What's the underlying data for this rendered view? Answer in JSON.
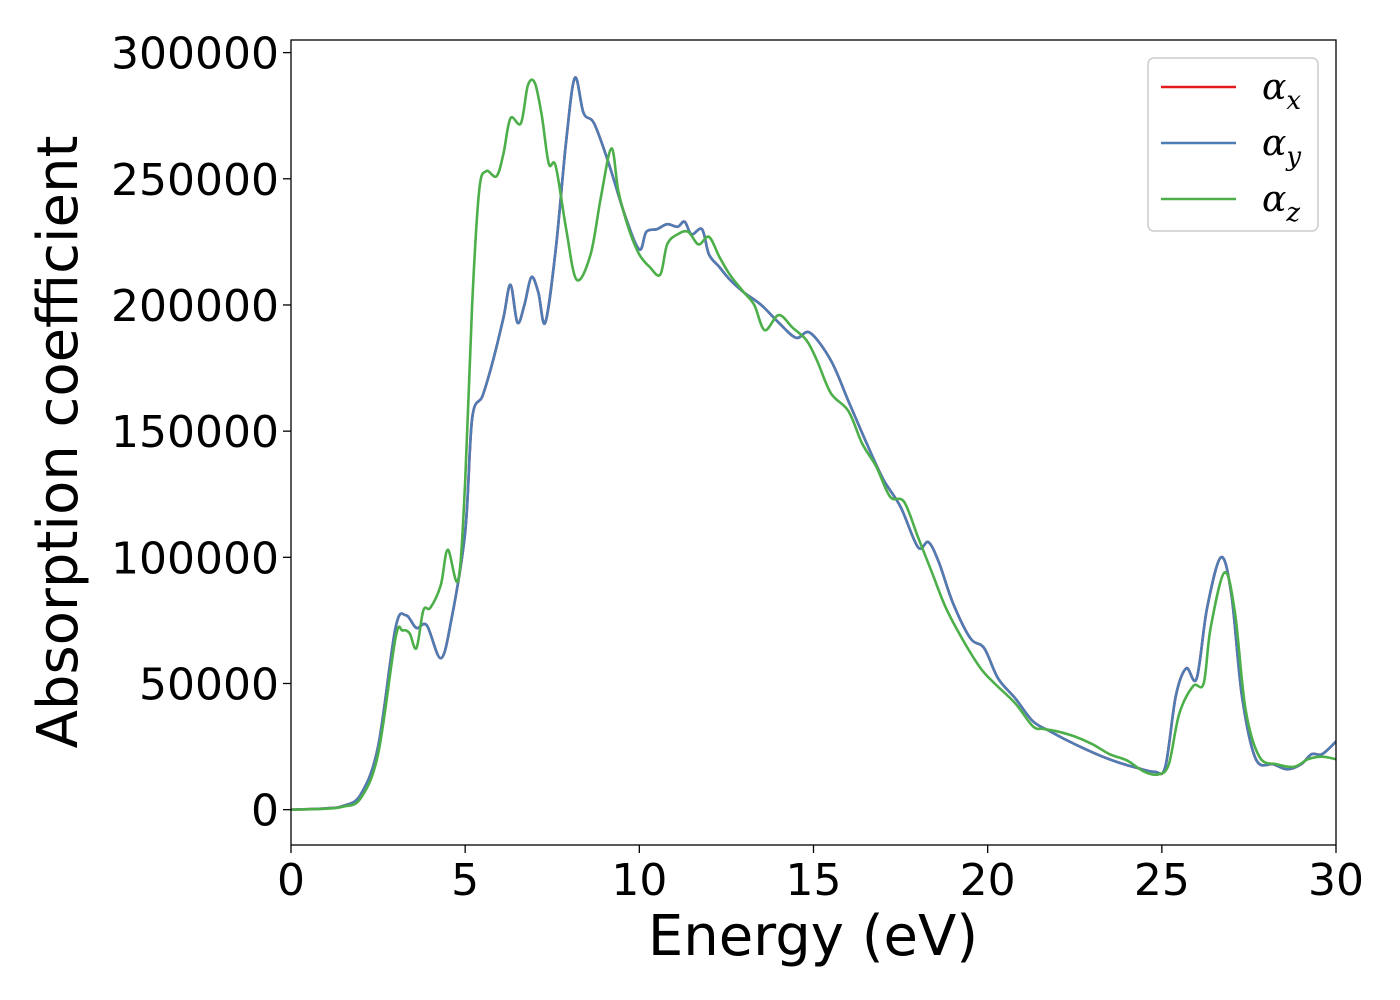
{
  "chart_data": {
    "type": "line",
    "xlabel": "Energy (eV)",
    "ylabel": "Absorption coefficient",
    "xlim": [
      0,
      30
    ],
    "ylim": [
      -14000,
      305000
    ],
    "xticks": [
      0,
      5,
      10,
      15,
      20,
      25,
      30
    ],
    "yticks": [
      0,
      50000,
      100000,
      150000,
      200000,
      250000,
      300000
    ],
    "grid": false,
    "legend_position": "top-right",
    "series": [
      {
        "name": "α_x",
        "legend_base": "α",
        "legend_sub": "x",
        "color": "#e41a1c",
        "points": [
          [
            0,
            0
          ],
          [
            1,
            500
          ],
          [
            1.5,
            1500
          ],
          [
            2,
            6000
          ],
          [
            2.5,
            25000
          ],
          [
            3,
            72000
          ],
          [
            3.3,
            77000
          ],
          [
            3.6,
            72000
          ],
          [
            3.9,
            73000
          ],
          [
            4.3,
            60000
          ],
          [
            4.6,
            75000
          ],
          [
            5,
            110000
          ],
          [
            5.2,
            155000
          ],
          [
            5.5,
            164000
          ],
          [
            5.8,
            178000
          ],
          [
            6.1,
            195000
          ],
          [
            6.3,
            208000
          ],
          [
            6.5,
            193000
          ],
          [
            6.7,
            200000
          ],
          [
            6.9,
            211000
          ],
          [
            7.1,
            205000
          ],
          [
            7.3,
            193000
          ],
          [
            7.6,
            222000
          ],
          [
            7.9,
            265000
          ],
          [
            8.15,
            290000
          ],
          [
            8.4,
            276000
          ],
          [
            8.7,
            272000
          ],
          [
            9.1,
            257000
          ],
          [
            9.6,
            235000
          ],
          [
            10,
            222000
          ],
          [
            10.2,
            229000
          ],
          [
            10.5,
            230000
          ],
          [
            10.8,
            232000
          ],
          [
            11.1,
            231000
          ],
          [
            11.3,
            233000
          ],
          [
            11.5,
            228000
          ],
          [
            11.8,
            230000
          ],
          [
            12,
            220000
          ],
          [
            12.3,
            215000
          ],
          [
            12.6,
            210000
          ],
          [
            13,
            205000
          ],
          [
            13.5,
            200000
          ],
          [
            14,
            193000
          ],
          [
            14.5,
            187000
          ],
          [
            14.9,
            189000
          ],
          [
            15.5,
            178000
          ],
          [
            16,
            162000
          ],
          [
            16.5,
            146000
          ],
          [
            17,
            131000
          ],
          [
            17.5,
            120000
          ],
          [
            18,
            104000
          ],
          [
            18.3,
            106000
          ],
          [
            18.6,
            98000
          ],
          [
            19,
            82000
          ],
          [
            19.5,
            68000
          ],
          [
            19.9,
            64000
          ],
          [
            20.3,
            52000
          ],
          [
            20.8,
            44000
          ],
          [
            21.3,
            35000
          ],
          [
            21.8,
            31000
          ],
          [
            22.2,
            28000
          ],
          [
            22.8,
            24000
          ],
          [
            23.3,
            21000
          ],
          [
            23.8,
            18500
          ],
          [
            24.3,
            16500
          ],
          [
            24.8,
            15000
          ],
          [
            25.1,
            17000
          ],
          [
            25.4,
            45000
          ],
          [
            25.7,
            56000
          ],
          [
            26,
            52000
          ],
          [
            26.3,
            80000
          ],
          [
            26.7,
            100000
          ],
          [
            27,
            85000
          ],
          [
            27.3,
            45000
          ],
          [
            27.7,
            20000
          ],
          [
            28.2,
            18000
          ],
          [
            28.6,
            16000
          ],
          [
            29,
            18000
          ],
          [
            29.3,
            22000
          ],
          [
            29.6,
            22000
          ],
          [
            30,
            27000
          ]
        ]
      },
      {
        "name": "α_y",
        "legend_base": "α",
        "legend_sub": "y",
        "color": "#4e7cb5",
        "points": [
          [
            0,
            0
          ],
          [
            1,
            500
          ],
          [
            1.5,
            1500
          ],
          [
            2,
            6000
          ],
          [
            2.5,
            25000
          ],
          [
            3,
            72000
          ],
          [
            3.3,
            77000
          ],
          [
            3.6,
            72000
          ],
          [
            3.9,
            73000
          ],
          [
            4.3,
            60000
          ],
          [
            4.6,
            75000
          ],
          [
            5,
            110000
          ],
          [
            5.2,
            155000
          ],
          [
            5.5,
            164000
          ],
          [
            5.8,
            178000
          ],
          [
            6.1,
            195000
          ],
          [
            6.3,
            208000
          ],
          [
            6.5,
            193000
          ],
          [
            6.7,
            200000
          ],
          [
            6.9,
            211000
          ],
          [
            7.1,
            205000
          ],
          [
            7.3,
            193000
          ],
          [
            7.6,
            222000
          ],
          [
            7.9,
            265000
          ],
          [
            8.15,
            290000
          ],
          [
            8.4,
            276000
          ],
          [
            8.7,
            272000
          ],
          [
            9.1,
            257000
          ],
          [
            9.6,
            235000
          ],
          [
            10,
            222000
          ],
          [
            10.2,
            229000
          ],
          [
            10.5,
            230000
          ],
          [
            10.8,
            232000
          ],
          [
            11.1,
            231000
          ],
          [
            11.3,
            233000
          ],
          [
            11.5,
            228000
          ],
          [
            11.8,
            230000
          ],
          [
            12,
            220000
          ],
          [
            12.3,
            215000
          ],
          [
            12.6,
            210000
          ],
          [
            13,
            205000
          ],
          [
            13.5,
            200000
          ],
          [
            14,
            193000
          ],
          [
            14.5,
            187000
          ],
          [
            14.9,
            189000
          ],
          [
            15.5,
            178000
          ],
          [
            16,
            162000
          ],
          [
            16.5,
            146000
          ],
          [
            17,
            131000
          ],
          [
            17.5,
            120000
          ],
          [
            18,
            104000
          ],
          [
            18.3,
            106000
          ],
          [
            18.6,
            98000
          ],
          [
            19,
            82000
          ],
          [
            19.5,
            68000
          ],
          [
            19.9,
            64000
          ],
          [
            20.3,
            52000
          ],
          [
            20.8,
            44000
          ],
          [
            21.3,
            35000
          ],
          [
            21.8,
            31000
          ],
          [
            22.2,
            28000
          ],
          [
            22.8,
            24000
          ],
          [
            23.3,
            21000
          ],
          [
            23.8,
            18500
          ],
          [
            24.3,
            16500
          ],
          [
            24.8,
            15000
          ],
          [
            25.1,
            17000
          ],
          [
            25.4,
            45000
          ],
          [
            25.7,
            56000
          ],
          [
            26,
            52000
          ],
          [
            26.3,
            80000
          ],
          [
            26.7,
            100000
          ],
          [
            27,
            85000
          ],
          [
            27.3,
            45000
          ],
          [
            27.7,
            20000
          ],
          [
            28.2,
            18000
          ],
          [
            28.6,
            16000
          ],
          [
            29,
            18000
          ],
          [
            29.3,
            22000
          ],
          [
            29.6,
            22000
          ],
          [
            30,
            27000
          ]
        ]
      },
      {
        "name": "α_z",
        "legend_base": "α",
        "legend_sub": "z",
        "color": "#4daf4a",
        "points": [
          [
            0,
            0
          ],
          [
            1,
            400
          ],
          [
            1.5,
            1200
          ],
          [
            2,
            4500
          ],
          [
            2.5,
            22000
          ],
          [
            3,
            68000
          ],
          [
            3.2,
            71000
          ],
          [
            3.4,
            70000
          ],
          [
            3.6,
            64000
          ],
          [
            3.8,
            79000
          ],
          [
            4,
            80000
          ],
          [
            4.3,
            89000
          ],
          [
            4.5,
            103000
          ],
          [
            4.8,
            91000
          ],
          [
            5,
            130000
          ],
          [
            5.2,
            200000
          ],
          [
            5.4,
            245000
          ],
          [
            5.6,
            253000
          ],
          [
            5.9,
            251000
          ],
          [
            6.1,
            260000
          ],
          [
            6.3,
            274000
          ],
          [
            6.6,
            272000
          ],
          [
            6.8,
            287000
          ],
          [
            7,
            288000
          ],
          [
            7.2,
            275000
          ],
          [
            7.4,
            256000
          ],
          [
            7.6,
            255000
          ],
          [
            7.9,
            230000
          ],
          [
            8.2,
            210000
          ],
          [
            8.6,
            220000
          ],
          [
            8.9,
            243000
          ],
          [
            9.2,
            262000
          ],
          [
            9.4,
            245000
          ],
          [
            9.7,
            230000
          ],
          [
            10,
            220000
          ],
          [
            10.3,
            215000
          ],
          [
            10.6,
            212000
          ],
          [
            10.8,
            224000
          ],
          [
            11.1,
            228000
          ],
          [
            11.4,
            229000
          ],
          [
            11.7,
            224000
          ],
          [
            12,
            227000
          ],
          [
            12.3,
            219000
          ],
          [
            12.6,
            212000
          ],
          [
            13,
            205000
          ],
          [
            13.3,
            200000
          ],
          [
            13.6,
            190000
          ],
          [
            14,
            196000
          ],
          [
            14.4,
            191000
          ],
          [
            14.8,
            186000
          ],
          [
            15.1,
            178000
          ],
          [
            15.5,
            165000
          ],
          [
            16,
            158000
          ],
          [
            16.4,
            145000
          ],
          [
            16.8,
            136000
          ],
          [
            17.2,
            124000
          ],
          [
            17.6,
            122000
          ],
          [
            18,
            108000
          ],
          [
            18.4,
            94000
          ],
          [
            18.8,
            80000
          ],
          [
            19.3,
            67000
          ],
          [
            19.8,
            56000
          ],
          [
            20.2,
            50000
          ],
          [
            20.8,
            42000
          ],
          [
            21.3,
            33000
          ],
          [
            21.6,
            32000
          ],
          [
            22,
            31000
          ],
          [
            22.5,
            29000
          ],
          [
            23,
            26000
          ],
          [
            23.5,
            22000
          ],
          [
            24,
            19500
          ],
          [
            24.5,
            15000
          ],
          [
            24.9,
            14000
          ],
          [
            25.2,
            18000
          ],
          [
            25.5,
            38000
          ],
          [
            25.9,
            49000
          ],
          [
            26.2,
            50000
          ],
          [
            26.4,
            72000
          ],
          [
            26.8,
            94000
          ],
          [
            27.1,
            78000
          ],
          [
            27.4,
            40000
          ],
          [
            27.8,
            21000
          ],
          [
            28.3,
            18000
          ],
          [
            28.8,
            17000
          ],
          [
            29.2,
            20000
          ],
          [
            29.6,
            21000
          ],
          [
            30,
            20000
          ]
        ]
      }
    ]
  }
}
